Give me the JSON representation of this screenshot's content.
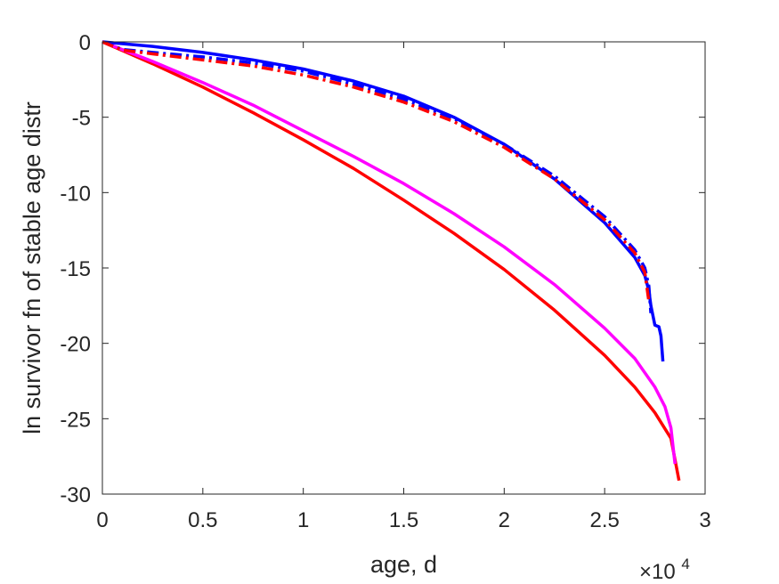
{
  "chart_data": {
    "type": "line",
    "title": "",
    "xlabel": "age, d",
    "ylabel": "ln survivor fn of stable age distr",
    "x_multiplier_label": "×10",
    "x_multiplier_exponent": "4",
    "xlim": [
      0,
      3
    ],
    "ylim": [
      -30,
      0
    ],
    "x_ticks": [
      0,
      0.5,
      1,
      1.5,
      2,
      2.5,
      3
    ],
    "x_tick_labels": [
      "0",
      "0.5",
      "1",
      "1.5",
      "2",
      "2.5",
      "3"
    ],
    "y_ticks": [
      0,
      -5,
      -10,
      -15,
      -20,
      -25,
      -30
    ],
    "y_tick_labels": [
      "0",
      "-5",
      "-10",
      "-15",
      "-20",
      "-25",
      "-30"
    ],
    "grid": false,
    "legend": null,
    "series": [
      {
        "color": "#ff0000",
        "style": "solid",
        "x": [
          0,
          0.25,
          0.5,
          0.75,
          1.0,
          1.25,
          1.5,
          1.75,
          2.0,
          2.25,
          2.5,
          2.65,
          2.75,
          2.83,
          2.87
        ],
        "y": [
          0,
          -1.45,
          -3.0,
          -4.7,
          -6.5,
          -8.4,
          -10.5,
          -12.7,
          -15.1,
          -17.8,
          -20.8,
          -22.9,
          -24.6,
          -26.3,
          -29.1
        ]
      },
      {
        "color": "#ff00ff",
        "style": "solid",
        "x": [
          0,
          0.25,
          0.5,
          0.75,
          1.0,
          1.25,
          1.5,
          1.75,
          2.0,
          2.25,
          2.5,
          2.65,
          2.75,
          2.8,
          2.83,
          2.85
        ],
        "y": [
          0,
          -1.3,
          -2.7,
          -4.2,
          -5.9,
          -7.6,
          -9.4,
          -11.4,
          -13.6,
          -16.1,
          -19.0,
          -21.0,
          -22.9,
          -24.2,
          -25.6,
          -28.0
        ]
      },
      {
        "color": "#0000ff",
        "style": "solid",
        "x": [
          0,
          0.25,
          0.5,
          0.75,
          1.0,
          1.25,
          1.5,
          1.75,
          2.0,
          2.25,
          2.5,
          2.65,
          2.7,
          2.72,
          2.73,
          2.75,
          2.77,
          2.78,
          2.79
        ],
        "y": [
          0,
          -0.3,
          -0.7,
          -1.2,
          -1.8,
          -2.6,
          -3.6,
          -5.0,
          -6.8,
          -9.1,
          -12.0,
          -14.3,
          -15.5,
          -16.5,
          -17.5,
          -18.8,
          -18.9,
          -19.5,
          -21.2
        ]
      },
      {
        "color": "#0000ff",
        "style": "dashdot",
        "x": [
          0,
          0.1,
          0.25,
          0.5,
          0.75,
          1.0,
          1.25,
          1.5,
          1.75,
          2.0,
          2.25,
          2.5,
          2.65,
          2.7,
          2.72,
          2.73
        ],
        "y": [
          0,
          -0.5,
          -0.7,
          -1.0,
          -1.4,
          -1.95,
          -2.8,
          -3.8,
          -5.1,
          -6.8,
          -8.9,
          -11.6,
          -13.8,
          -15.0,
          -16.2,
          -18.0
        ]
      },
      {
        "color": "#ff0000",
        "style": "dashdot",
        "x": [
          0,
          0.1,
          0.25,
          0.5,
          0.75,
          1.0,
          1.25,
          1.5,
          1.75,
          2.0,
          2.25,
          2.5,
          2.65,
          2.7,
          2.72
        ],
        "y": [
          0,
          -0.55,
          -0.8,
          -1.2,
          -1.6,
          -2.2,
          -3.0,
          -4.0,
          -5.3,
          -7.0,
          -9.1,
          -11.8,
          -14.0,
          -15.3,
          -17.2
        ]
      }
    ]
  }
}
